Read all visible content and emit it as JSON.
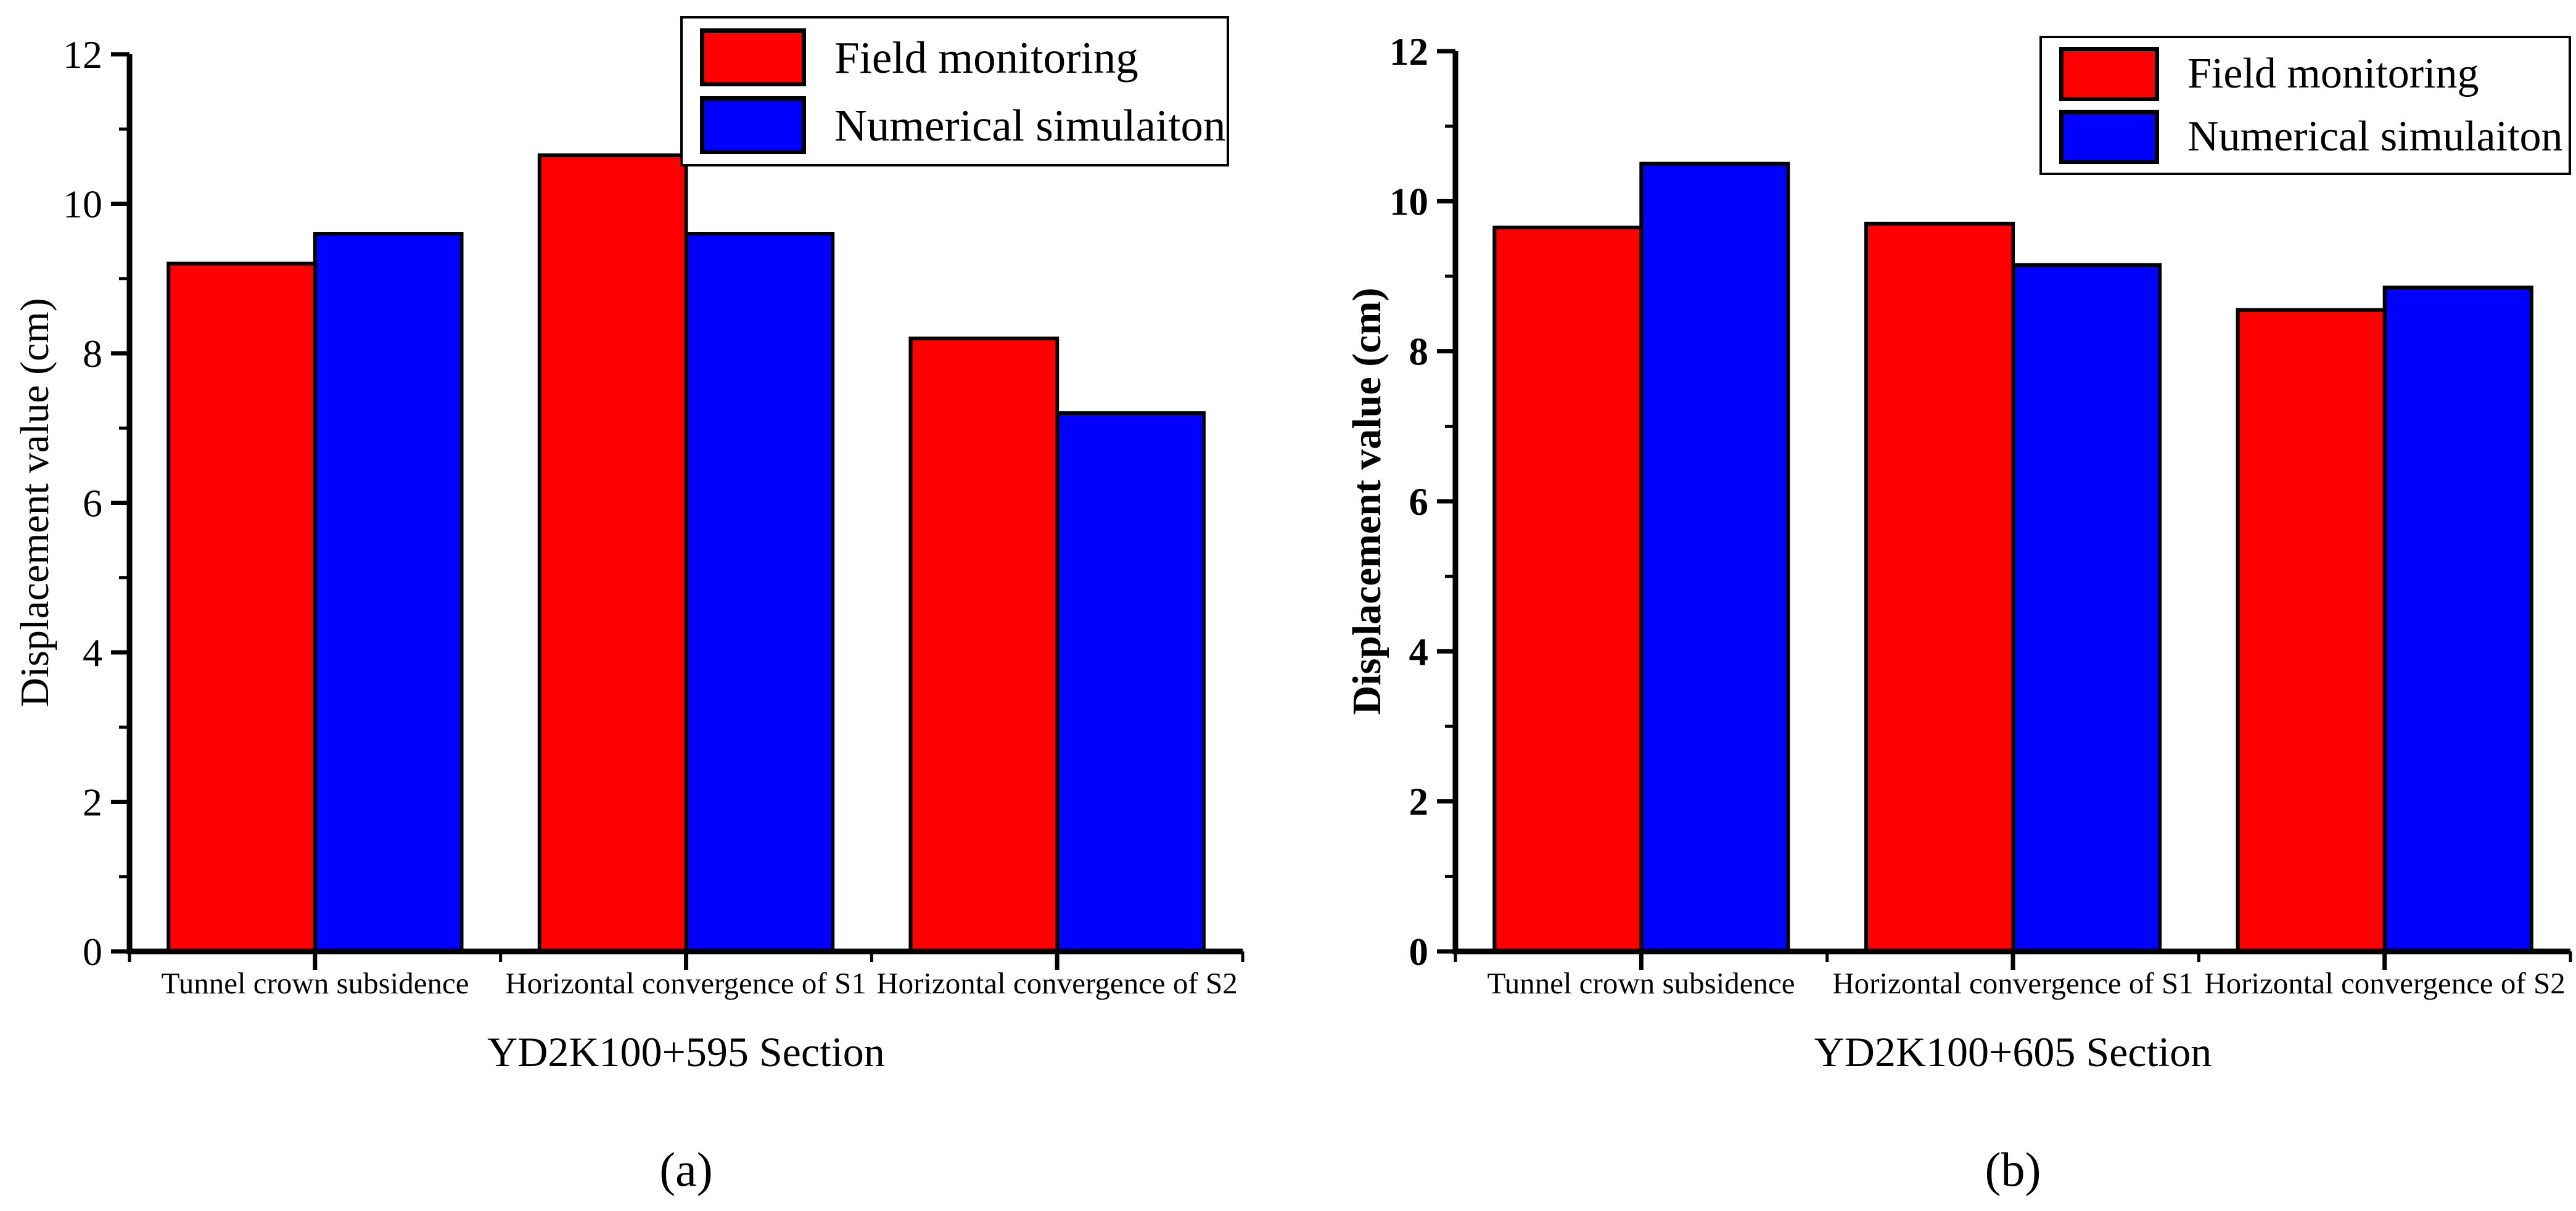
{
  "figure": {
    "background": "#ffffff",
    "axis_color": "#000000",
    "text_color": "#000000"
  },
  "chart_data": [
    {
      "type": "bar",
      "panel_label": "(a)",
      "xlabel": "YD2K100+595 Section",
      "ylabel": "Displacement value (cm)",
      "ylim": [
        0,
        12
      ],
      "ytick_interval": 2,
      "minor_ytick_interval": 1,
      "ytick_labels": [
        "0",
        "2",
        "4",
        "6",
        "8",
        "10",
        "12"
      ],
      "grid": false,
      "legend_position": "top-right",
      "categories": [
        "Tunnel crown subsidence",
        "Horizontal convergence of S1",
        "Horizontal convergence of S2"
      ],
      "series": [
        {
          "name": "Field monitoring",
          "color": "#ff0000",
          "values": [
            9.2,
            10.65,
            8.2
          ]
        },
        {
          "name": "Numerical simulaiton",
          "color": "#0000ff",
          "values": [
            9.6,
            9.6,
            7.2
          ]
        }
      ]
    },
    {
      "type": "bar",
      "panel_label": "(b)",
      "xlabel": "YD2K100+605 Section",
      "ylabel": "Displacement value (cm)",
      "ylim": [
        0,
        12
      ],
      "ytick_interval": 2,
      "minor_ytick_interval": 1,
      "ytick_labels": [
        "0",
        "2",
        "4",
        "6",
        "8",
        "10",
        "12"
      ],
      "grid": false,
      "legend_position": "top-right",
      "categories": [
        "Tunnel crown subsidence",
        "Horizontal convergence of S1",
        "Horizontal convergence of S2"
      ],
      "series": [
        {
          "name": "Field monitoring",
          "color": "#ff0000",
          "values": [
            9.65,
            9.7,
            8.55
          ]
        },
        {
          "name": "Numerical simulaiton",
          "color": "#0000ff",
          "values": [
            10.5,
            9.15,
            8.85
          ]
        }
      ]
    }
  ]
}
